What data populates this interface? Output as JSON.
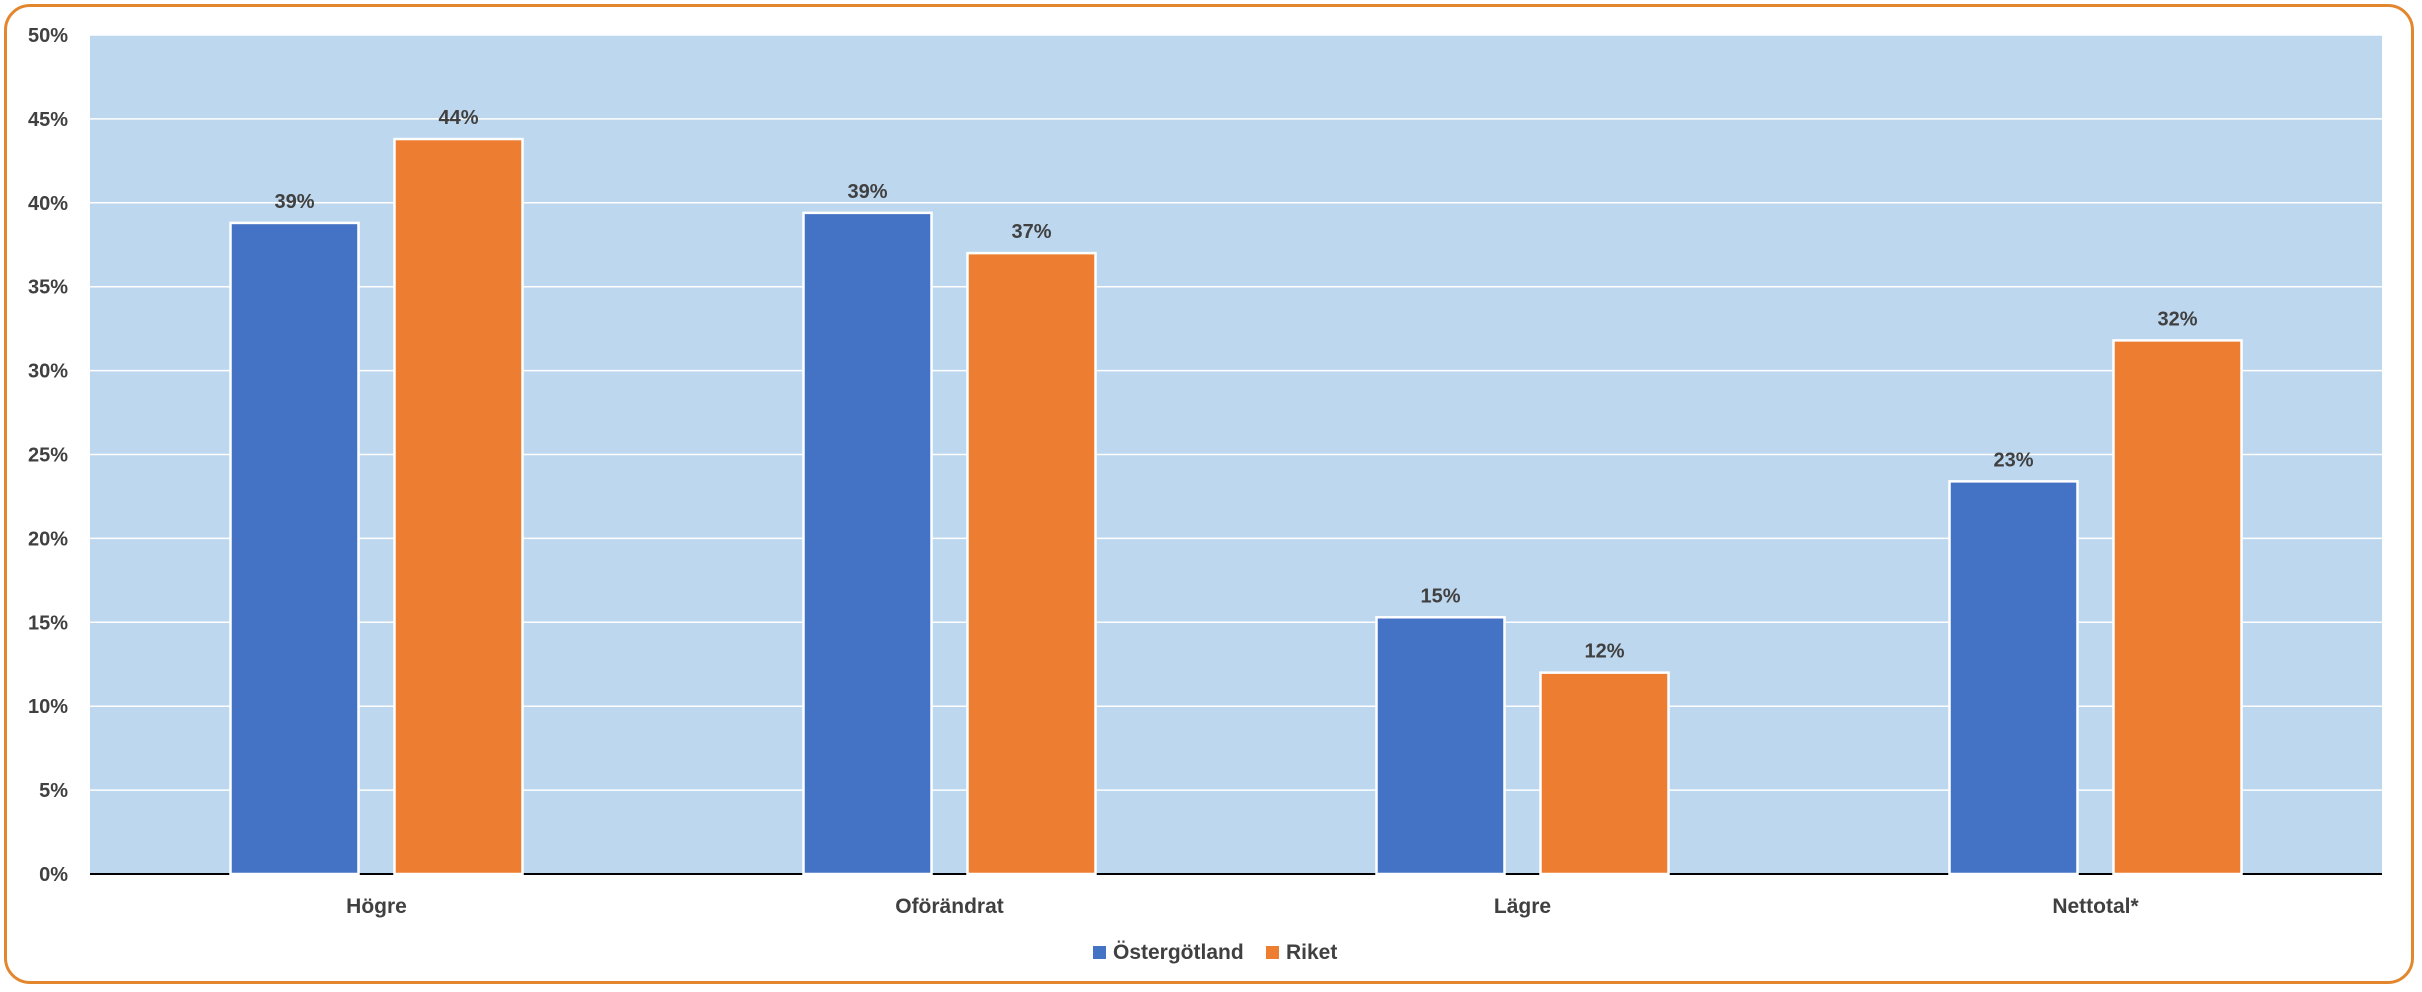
{
  "chart_data": {
    "type": "bar",
    "title": "",
    "xlabel": "",
    "ylabel": "",
    "categories": [
      "Högre",
      "Oförändrat",
      "Lägre",
      "Nettotal*"
    ],
    "series": [
      {
        "name": "Östergötland",
        "values": [
          39,
          39,
          15,
          23
        ],
        "actual": [
          38.8,
          39.4,
          15.3,
          23.4
        ],
        "color": "#4472C4"
      },
      {
        "name": "Riket",
        "values": [
          44,
          37,
          12,
          32
        ],
        "actual": [
          43.8,
          37.0,
          12.0,
          31.8
        ],
        "color": "#ED7D31"
      }
    ],
    "ylim": [
      0,
      50
    ],
    "ytick_step": 5,
    "ytick_labels": [
      "0%",
      "5%",
      "10%",
      "15%",
      "20%",
      "25%",
      "30%",
      "35%",
      "40%",
      "45%",
      "50%"
    ],
    "value_suffix": "%",
    "plot_background": "#BDD7EE",
    "gridlines": true,
    "legend_position": "bottom-center",
    "frame_color": "#E3872F"
  }
}
